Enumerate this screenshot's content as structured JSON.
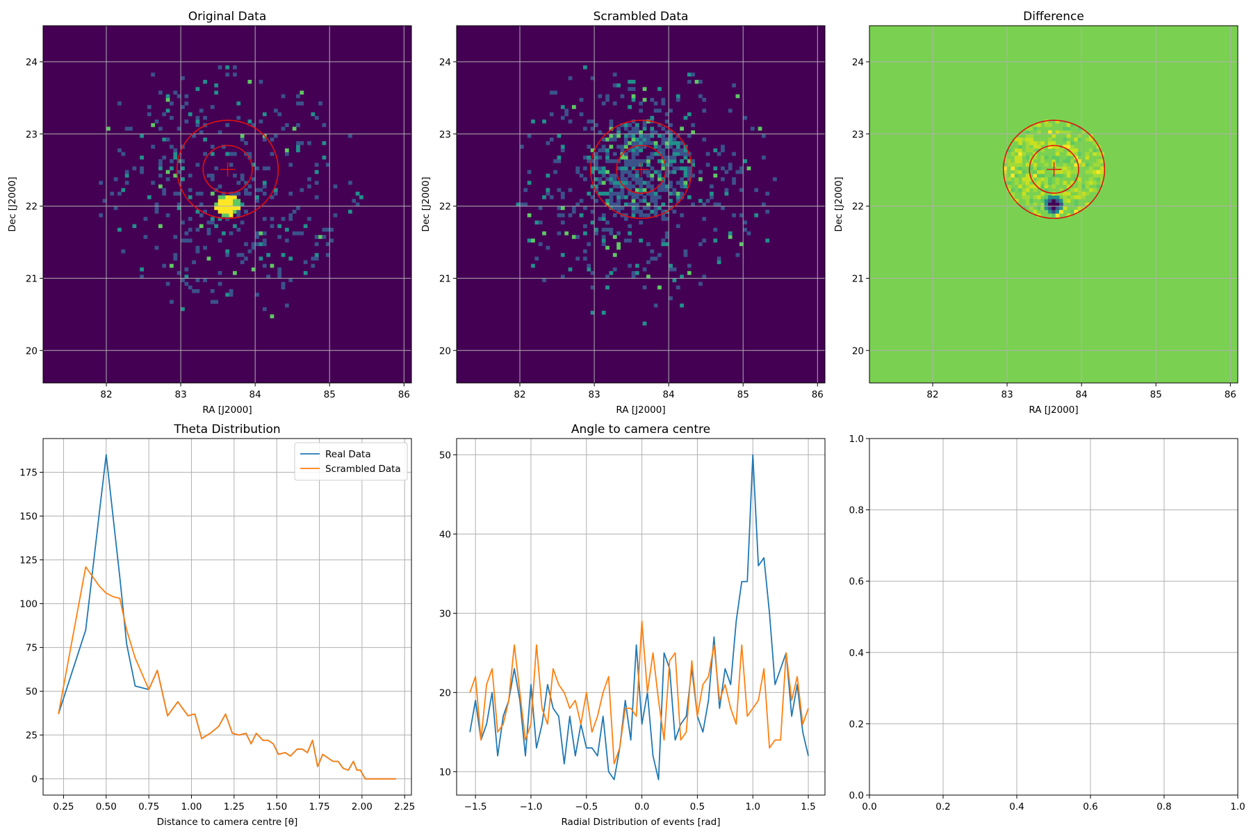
{
  "figure": {
    "background": "#ffffff"
  },
  "chart_data": [
    {
      "type": "heatmap",
      "title": "Original Data",
      "xlabel": "RA [J2000]",
      "ylabel": "Dec [J2000]",
      "xlim": [
        81.15,
        86.1
      ],
      "ylim": [
        19.55,
        24.5
      ],
      "xticks": [
        82,
        83,
        84,
        85,
        86
      ],
      "yticks": [
        20,
        21,
        22,
        23,
        24
      ],
      "grid": true,
      "background_color": "#440154",
      "colors": {
        "low": "#3b528b",
        "mid": "#21918c",
        "high": "#5ec962",
        "peak": "#fde725",
        "ring": "#e01010",
        "grid": "#b0b0b0"
      },
      "field": {
        "center": [
          83.63,
          22.25
        ],
        "radius": 1.9,
        "density": 0.13,
        "seed": 11
      },
      "hotspot": {
        "center": [
          83.63,
          22.01
        ],
        "radius": 0.16
      },
      "rings": {
        "center": [
          83.63,
          22.51
        ],
        "inner_radius": 0.33,
        "outer_radius": 0.68
      },
      "marker": {
        "center": [
          83.63,
          22.51
        ],
        "size": 0.1
      }
    },
    {
      "type": "heatmap",
      "title": "Scrambled Data",
      "xlabel": "RA [J2000]",
      "ylabel": "Dec [J2000]",
      "xlim": [
        81.15,
        86.1
      ],
      "ylim": [
        19.55,
        24.5
      ],
      "xticks": [
        82,
        83,
        84,
        85,
        86
      ],
      "yticks": [
        20,
        21,
        22,
        23,
        24
      ],
      "grid": true,
      "background_color": "#440154",
      "colors": {
        "low": "#3b528b",
        "mid": "#21918c",
        "high": "#5ec962",
        "peak": "#fde725",
        "ring": "#e01010",
        "grid": "#b0b0b0"
      },
      "field": {
        "center": [
          83.63,
          22.25
        ],
        "radius": 1.9,
        "density": 0.13,
        "seed": 23
      },
      "annulus_fill": {
        "center": [
          83.63,
          22.51
        ],
        "radius": 0.68,
        "density": 0.55
      },
      "rings": {
        "center": [
          83.63,
          22.51
        ],
        "inner_radius": 0.33,
        "outer_radius": 0.68
      },
      "marker": {
        "center": [
          83.63,
          22.51
        ],
        "size": 0.1
      }
    },
    {
      "type": "heatmap",
      "title": "Difference",
      "xlabel": "RA [J2000]",
      "ylabel": "Dec [J2000]",
      "xlim": [
        81.15,
        86.1
      ],
      "ylim": [
        19.55,
        24.5
      ],
      "xticks": [
        82,
        83,
        84,
        85,
        86
      ],
      "yticks": [
        20,
        21,
        22,
        23,
        24
      ],
      "grid": true,
      "background_color": "#7ad151",
      "colors": {
        "speckle_a": "#a0da39",
        "speckle_b": "#c8e020",
        "speckle_c": "#5ec962",
        "speckle_d": "#fde725",
        "dip_a": "#21918c",
        "dip_b": "#3b528b",
        "dip_c": "#440154",
        "ring": "#e01010",
        "grid": "#b0b0b0"
      },
      "annulus_fill": {
        "center": [
          83.63,
          22.51
        ],
        "radius": 0.68,
        "density": 0.5
      },
      "dip": {
        "center": [
          83.63,
          22.02
        ],
        "radius": 0.13
      },
      "rings": {
        "center": [
          83.63,
          22.51
        ],
        "inner_radius": 0.33,
        "outer_radius": 0.68
      },
      "marker": {
        "center": [
          83.63,
          22.51
        ],
        "size": 0.1
      }
    },
    {
      "type": "line",
      "title": "Theta Distribution",
      "xlabel": "Distance to camera centre [θ]",
      "ylabel": "",
      "xlim": [
        0.13,
        2.29
      ],
      "ylim": [
        -9.25,
        194.25
      ],
      "xticks": [
        0.25,
        0.5,
        0.75,
        1.0,
        1.25,
        1.5,
        1.75,
        2.0,
        2.25
      ],
      "xtick_labels": [
        "0.25",
        "0.50",
        "0.75",
        "1.00",
        "1.25",
        "1.50",
        "1.75",
        "2.00",
        "2.25"
      ],
      "yticks": [
        0,
        25,
        50,
        75,
        100,
        125,
        150,
        175
      ],
      "grid": true,
      "legend": "top-right",
      "x": [
        0.22,
        0.3,
        0.38,
        0.46,
        0.5,
        0.54,
        0.58,
        0.62,
        0.67,
        0.75,
        0.8,
        0.86,
        0.92,
        0.98,
        1.02,
        1.06,
        1.11,
        1.16,
        1.2,
        1.24,
        1.28,
        1.32,
        1.35,
        1.38,
        1.42,
        1.45,
        1.48,
        1.51,
        1.55,
        1.58,
        1.62,
        1.65,
        1.68,
        1.71,
        1.74,
        1.77,
        1.8,
        1.83,
        1.86,
        1.89,
        1.92,
        1.95,
        1.97,
        1.99,
        2.02,
        2.06,
        2.1,
        2.15,
        2.2
      ],
      "series": [
        {
          "name": "Real Data",
          "color": "#1f77b4",
          "values": [
            37,
            61,
            85,
            152,
            185,
            150,
            115,
            77,
            53,
            51,
            62,
            36,
            44,
            36,
            37,
            23,
            26,
            30,
            37,
            26,
            25,
            26,
            20,
            26,
            22,
            22,
            20,
            14,
            15,
            13,
            17,
            17,
            15,
            22,
            7,
            14,
            12,
            10,
            10,
            6,
            5,
            10,
            5,
            5,
            0,
            0,
            0,
            0,
            0
          ]
        },
        {
          "name": "Scrambled Data",
          "color": "#ff7f0e",
          "values": [
            37,
            79,
            121,
            110,
            106,
            104,
            103,
            85,
            69,
            51,
            62,
            36,
            44,
            36,
            37,
            23,
            26,
            30,
            37,
            26,
            25,
            26,
            20,
            26,
            22,
            22,
            20,
            14,
            15,
            13,
            17,
            17,
            15,
            22,
            7,
            14,
            12,
            10,
            10,
            6,
            5,
            10,
            5,
            5,
            0,
            0,
            0,
            0,
            0
          ]
        }
      ]
    },
    {
      "type": "line",
      "title": "Angle to camera centre",
      "xlabel": "Radial Distribution of events [rad]",
      "ylabel": "",
      "xlim": [
        -1.67,
        1.65
      ],
      "ylim": [
        7.05,
        52.05
      ],
      "xticks": [
        -1.5,
        -1.0,
        -0.5,
        0.0,
        0.5,
        1.0,
        1.5
      ],
      "xtick_labels": [
        "−1.5",
        "−1.0",
        "−0.5",
        "0.0",
        "0.5",
        "1.0",
        "1.5"
      ],
      "yticks": [
        10,
        20,
        30,
        40,
        50
      ],
      "grid": true,
      "x": [
        -1.55,
        -1.5,
        -1.45,
        -1.4,
        -1.35,
        -1.3,
        -1.25,
        -1.2,
        -1.15,
        -1.1,
        -1.05,
        -1.0,
        -0.95,
        -0.9,
        -0.85,
        -0.8,
        -0.75,
        -0.7,
        -0.65,
        -0.6,
        -0.55,
        -0.5,
        -0.45,
        -0.4,
        -0.35,
        -0.3,
        -0.25,
        -0.2,
        -0.15,
        -0.1,
        -0.05,
        0.0,
        0.05,
        0.1,
        0.15,
        0.2,
        0.25,
        0.3,
        0.35,
        0.4,
        0.45,
        0.5,
        0.55,
        0.6,
        0.65,
        0.7,
        0.75,
        0.8,
        0.85,
        0.9,
        0.95,
        1.0,
        1.05,
        1.1,
        1.15,
        1.2,
        1.25,
        1.3,
        1.35,
        1.4,
        1.45,
        1.5
      ],
      "series": [
        {
          "name": "Real Data",
          "color": "#1f77b4",
          "values": [
            15,
            19,
            14,
            16,
            20,
            12,
            17,
            19,
            23,
            19,
            12,
            21,
            13,
            16,
            21,
            18,
            17,
            11,
            17,
            12,
            16,
            13,
            13,
            12,
            17,
            10,
            9,
            13,
            19,
            14,
            26,
            16,
            20,
            12,
            9,
            25,
            23,
            14,
            16,
            17,
            23,
            17,
            15,
            19,
            27,
            18,
            23,
            21,
            29,
            34,
            34,
            50,
            36,
            37,
            30,
            21,
            23,
            25,
            17,
            21,
            15,
            12
          ]
        },
        {
          "name": "Scrambled Data",
          "color": "#ff7f0e",
          "values": [
            20,
            22,
            14,
            21,
            23,
            15,
            16,
            19,
            26,
            20,
            14,
            16,
            26,
            18,
            16,
            23,
            21,
            20,
            18,
            19,
            16,
            20,
            15,
            17,
            20,
            22,
            11,
            13,
            18,
            18,
            17,
            29,
            20,
            25,
            19,
            14,
            24,
            25,
            14,
            15,
            24,
            17,
            21,
            22,
            26,
            19,
            21,
            18,
            16,
            26,
            17,
            18,
            19,
            23,
            13,
            14,
            14,
            25,
            19,
            22,
            16,
            18
          ]
        }
      ]
    },
    {
      "type": "line",
      "title": "",
      "xlabel": "",
      "ylabel": "",
      "xlim": [
        0,
        1
      ],
      "ylim": [
        0,
        1
      ],
      "xticks": [
        0,
        0.2,
        0.4,
        0.6,
        0.8,
        1.0
      ],
      "xtick_labels": [
        "0.0",
        "0.2",
        "0.4",
        "0.6",
        "0.8",
        "1.0"
      ],
      "yticks": [
        0,
        0.2,
        0.4,
        0.6,
        0.8,
        1.0
      ],
      "ytick_labels": [
        "0.0",
        "0.2",
        "0.4",
        "0.6",
        "0.8",
        "1.0"
      ],
      "grid": true,
      "series": []
    }
  ]
}
